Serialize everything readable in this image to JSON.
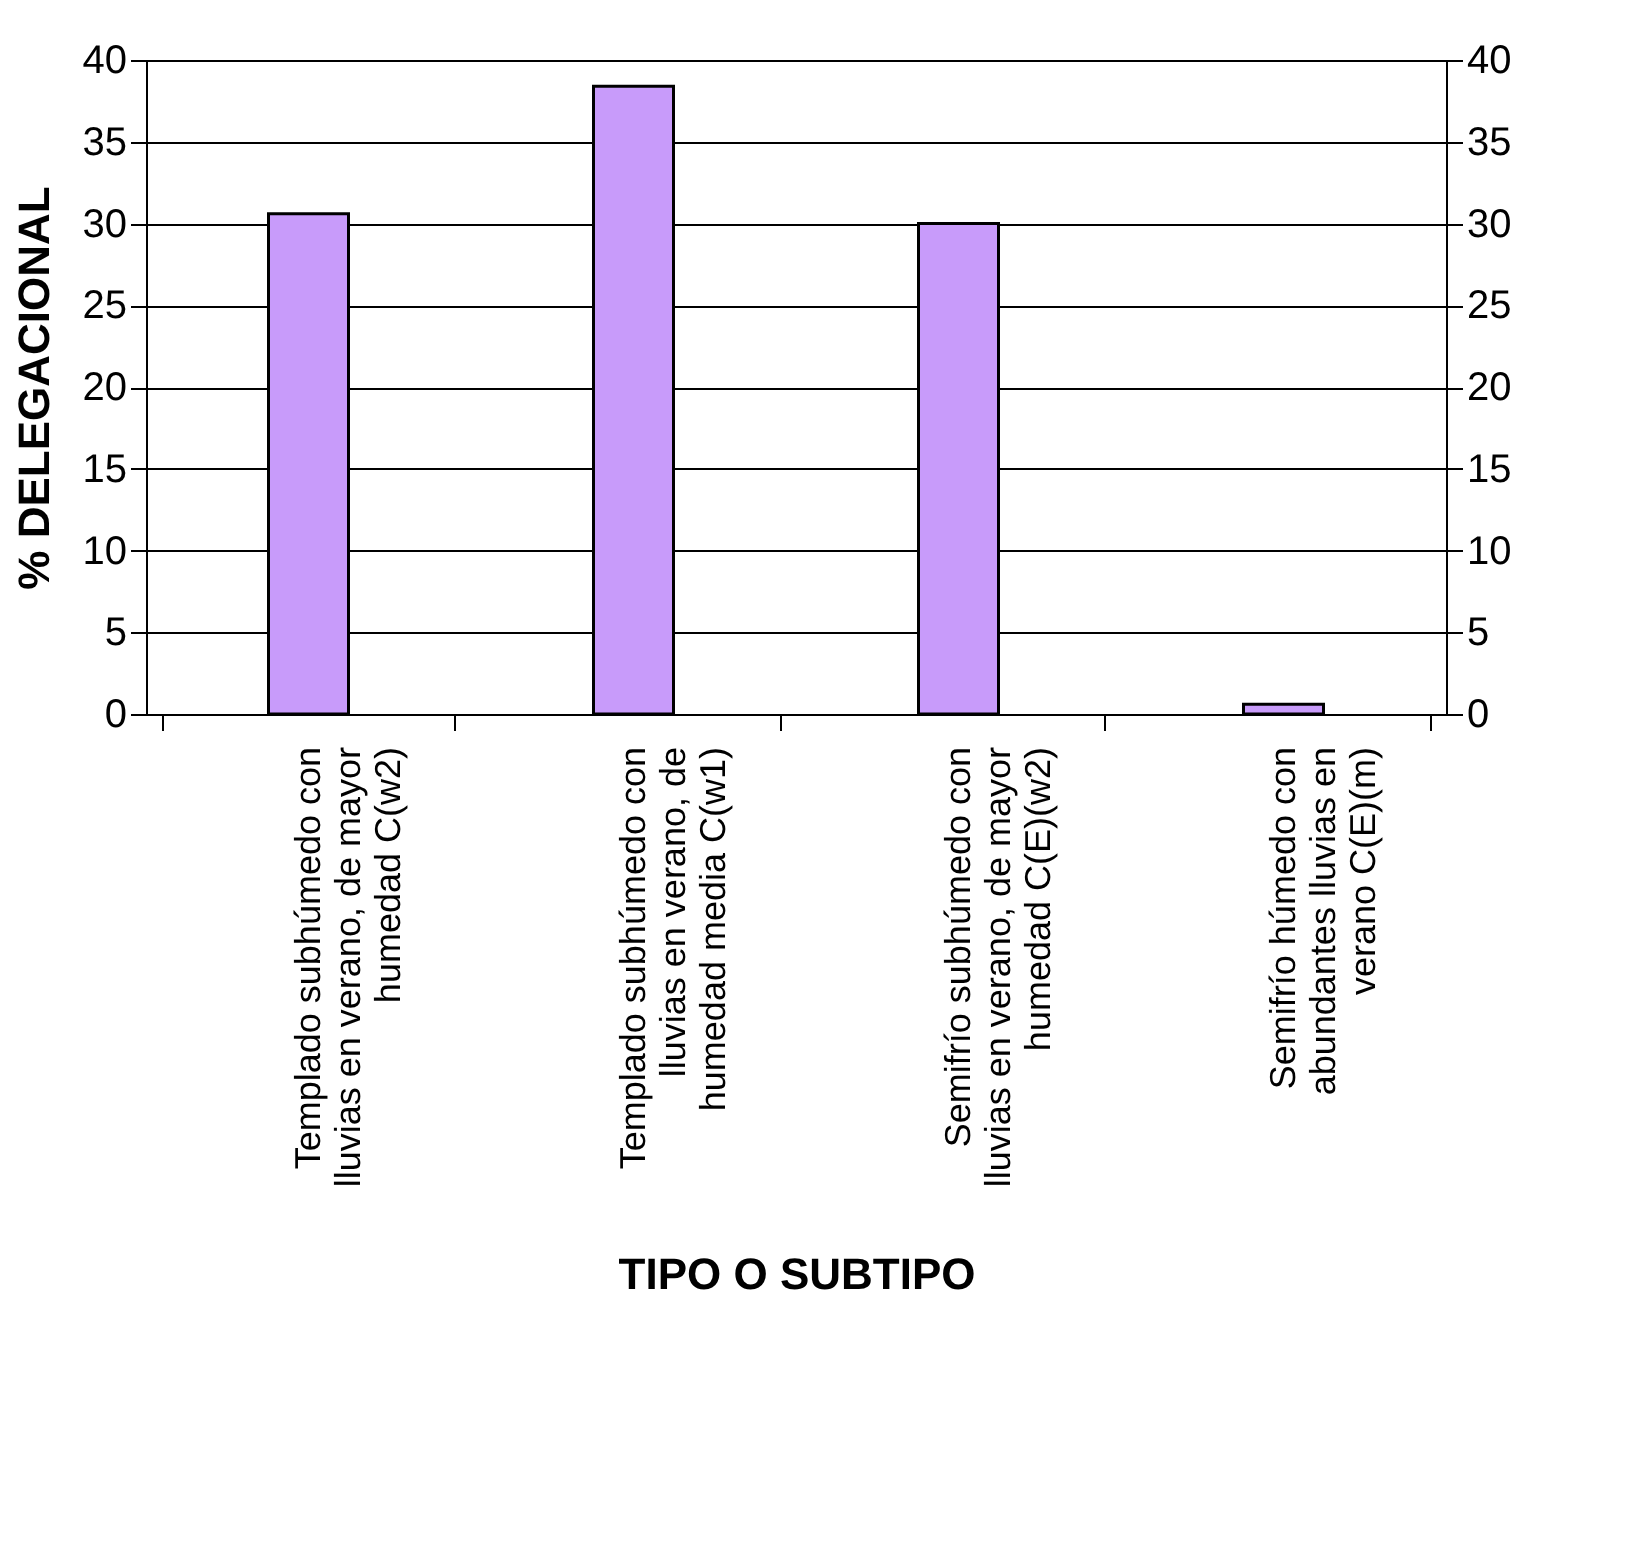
{
  "chart_data": {
    "type": "bar",
    "categories": [
      "Templado subhúmedo con lluvias en verano, de mayor humedad   C(w2)",
      "Templado subhúmedo con lluvias en verano, de humedad media   C(w1)",
      "Semifrío subhúmedo con lluvias en verano, de mayor humedad     C(E)(w2)",
      "Semifrío húmedo con abundantes lluvias en verano      C(E)(m)"
    ],
    "values": [
      30.6,
      38.4,
      30.0,
      0.6
    ],
    "color": "#c89bfa",
    "xlabel": "TIPO O SUBTIPO",
    "ylabel": "% DELEGACIONAL",
    "ylim": [
      0,
      40
    ],
    "yticks": [
      0,
      5,
      10,
      15,
      20,
      25,
      30,
      35,
      40
    ],
    "y2lim": [
      0,
      40
    ],
    "y2ticks": [
      0,
      5,
      10,
      15,
      20,
      25,
      30,
      35,
      40
    ],
    "grid": "y"
  }
}
